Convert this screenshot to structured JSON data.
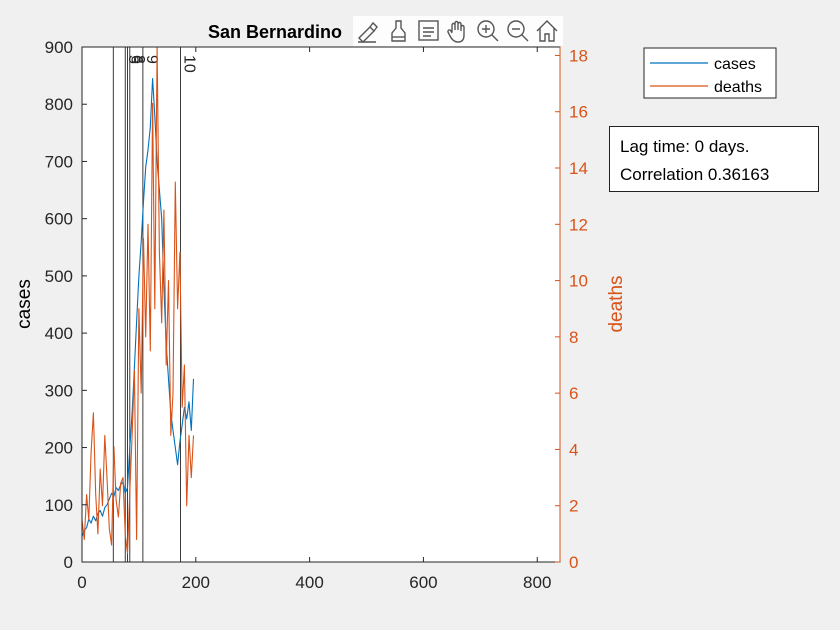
{
  "chart_data": {
    "type": "line",
    "title": "San Bernardino",
    "xlabel": "",
    "ylabel_left": "cases",
    "ylabel_right": "deaths",
    "xlim": [
      0,
      840
    ],
    "ylim_left": [
      0,
      900
    ],
    "ylim_right": [
      0,
      18.3
    ],
    "x_ticks": [
      0,
      200,
      400,
      600,
      800
    ],
    "y_ticks_left": [
      0,
      100,
      200,
      300,
      400,
      500,
      600,
      700,
      800,
      900
    ],
    "y_ticks_right": [
      0,
      2,
      4,
      6,
      8,
      10,
      12,
      14,
      16,
      18
    ],
    "grid": false,
    "legend_position": "top-right",
    "series": [
      {
        "name": "cases",
        "axis": "left",
        "color": "#0072bd",
        "x": [
          0,
          4,
          8,
          12,
          16,
          20,
          24,
          28,
          32,
          36,
          40,
          44,
          48,
          52,
          56,
          60,
          64,
          68,
          72,
          76,
          80,
          84,
          88,
          92,
          96,
          100,
          104,
          108,
          112,
          116,
          120,
          124,
          128,
          132,
          136,
          140,
          144,
          148,
          152,
          156,
          160,
          164,
          168,
          172,
          176,
          180,
          184,
          188,
          192,
          196
        ],
        "y": [
          45,
          55,
          60,
          75,
          68,
          80,
          72,
          85,
          90,
          80,
          95,
          100,
          110,
          120,
          115,
          130,
          125,
          135,
          140,
          120,
          130,
          200,
          260,
          340,
          420,
          500,
          560,
          630,
          690,
          720,
          760,
          845,
          780,
          700,
          650,
          600,
          480,
          380,
          320,
          260,
          230,
          200,
          170,
          210,
          240,
          270,
          250,
          280,
          230,
          320
        ]
      },
      {
        "name": "deaths",
        "axis": "right",
        "color": "#d95319",
        "x": [
          0,
          4,
          8,
          12,
          16,
          20,
          24,
          28,
          32,
          36,
          40,
          44,
          48,
          52,
          56,
          60,
          64,
          68,
          72,
          76,
          80,
          84,
          88,
          92,
          96,
          100,
          104,
          108,
          112,
          116,
          120,
          124,
          128,
          132,
          136,
          140,
          144,
          148,
          152,
          156,
          160,
          164,
          168,
          172,
          176,
          180,
          184,
          188,
          192,
          196
        ],
        "y": [
          1.5,
          0.8,
          2.4,
          1.5,
          3.9,
          5.3,
          2.4,
          1.0,
          3.3,
          2.0,
          4.5,
          3.0,
          1.2,
          0.6,
          4.1,
          2.2,
          1.6,
          2.8,
          3.0,
          1.0,
          0.3,
          2.5,
          4.5,
          6.8,
          0.8,
          9.0,
          6.0,
          11.5,
          8.0,
          12.0,
          7.5,
          16.3,
          9.0,
          18.3,
          11.0,
          8.5,
          12.5,
          7.0,
          10.0,
          4.5,
          6.0,
          13.5,
          9.0,
          11.0,
          5.5,
          7.0,
          2.0,
          4.5,
          3.0,
          4.5
        ]
      }
    ],
    "vlines": [
      {
        "x": 55,
        "label": ""
      },
      {
        "x": 76,
        "label": "5"
      },
      {
        "x": 80,
        "label": "6"
      },
      {
        "x": 84,
        "label": "8"
      },
      {
        "x": 107,
        "label": "9"
      },
      {
        "x": 173,
        "label": "10"
      }
    ]
  },
  "legend": {
    "items": [
      {
        "label": "cases",
        "color": "#0072bd"
      },
      {
        "label": "deaths",
        "color": "#d95319"
      }
    ]
  },
  "infobox": {
    "line1": "Lag time: 0 days.",
    "line2": "Correlation 0.36163"
  },
  "toolbar": {
    "icons": [
      "brush-icon",
      "clean-icon",
      "legend-icon",
      "pan-hand-icon",
      "zoom-in-icon",
      "zoom-out-icon",
      "home-icon"
    ]
  }
}
